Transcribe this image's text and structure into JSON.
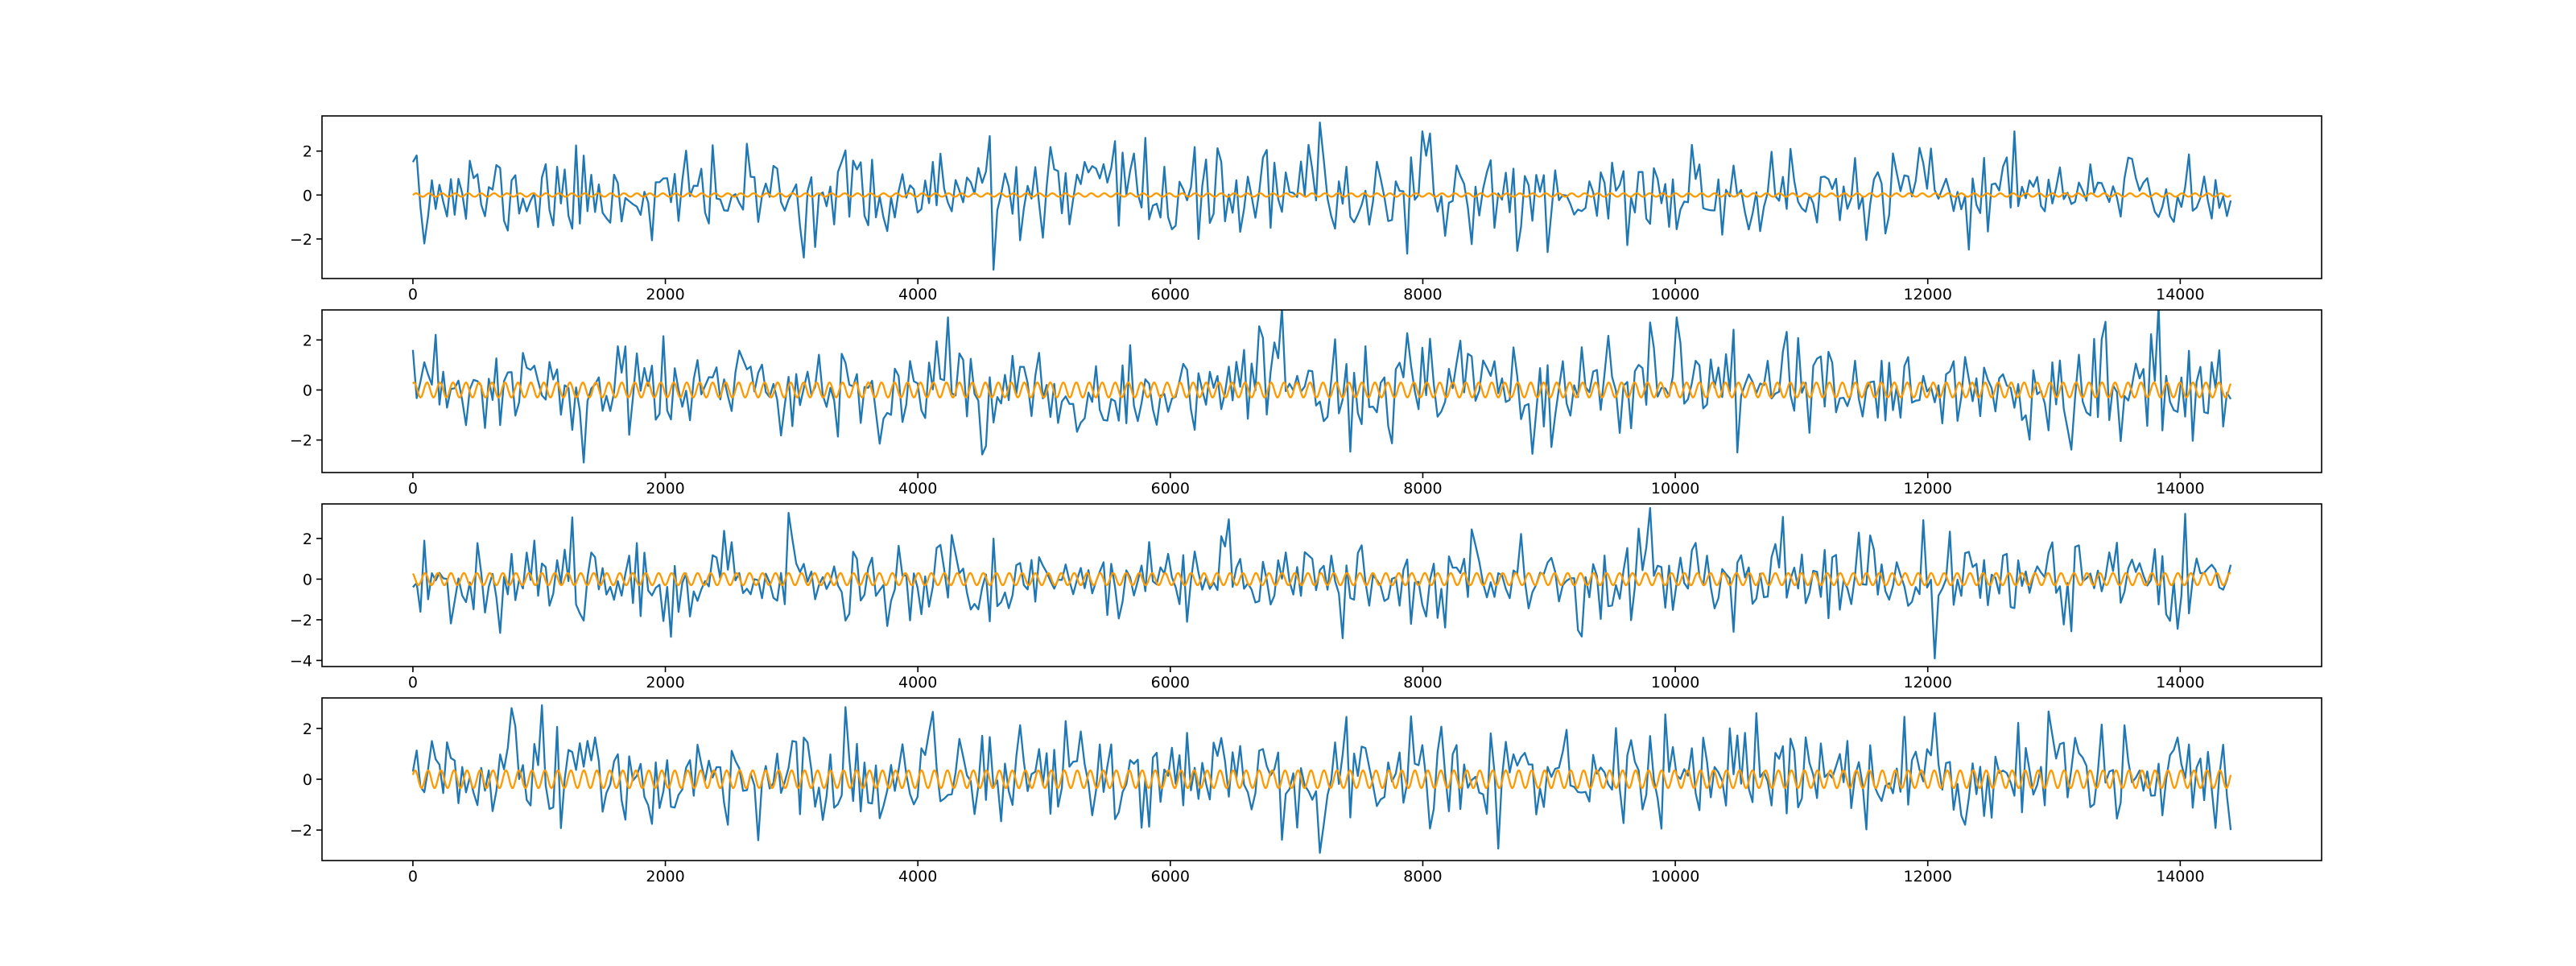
{
  "colors": {
    "noisy_series": "#1f77b4",
    "smooth_series": "#ff9900",
    "frame": "#000000"
  },
  "chart_data": [
    {
      "type": "line",
      "xlim": [
        -720,
        15120
      ],
      "ylim": [
        -3.8,
        3.6
      ],
      "xticks": [
        0,
        2000,
        4000,
        6000,
        8000,
        10000,
        12000,
        14000
      ],
      "yticks": [
        -2,
        0,
        2
      ],
      "x_range": [
        0,
        14400
      ],
      "noise": {
        "n_points": 480,
        "seed": 11,
        "scale": 1.0,
        "peaks": [
          [
            0,
            1.5
          ],
          [
            30,
            1.8
          ],
          [
            4600,
            -3.4
          ],
          [
            5800,
            2.6
          ],
          [
            7200,
            3.3
          ],
          [
            12700,
            2.9
          ],
          [
            9000,
            -2.6
          ]
        ]
      },
      "smooth": {
        "amplitude": 0.08,
        "cycles": 140,
        "phase": 0.0
      },
      "grid": false,
      "legend": "none"
    },
    {
      "type": "line",
      "xlim": [
        -720,
        15120
      ],
      "ylim": [
        -3.3,
        3.2
      ],
      "xticks": [
        0,
        2000,
        4000,
        6000,
        8000,
        10000,
        12000,
        14000
      ],
      "yticks": [
        -2,
        0,
        2
      ],
      "x_range": [
        0,
        14400
      ],
      "noise": {
        "n_points": 480,
        "seed": 23,
        "scale": 1.0,
        "peaks": [
          [
            0,
            1.6
          ],
          [
            1350,
            -2.9
          ],
          [
            4250,
            2.9
          ],
          [
            9800,
            2.7
          ],
          [
            10000,
            2.9
          ],
          [
            10500,
            -2.5
          ]
        ]
      },
      "smooth": {
        "amplitude": 0.3,
        "cycles": 140,
        "phase": 1.0
      },
      "grid": false,
      "legend": "none"
    },
    {
      "type": "line",
      "xlim": [
        -720,
        15120
      ],
      "ylim": [
        -4.3,
        3.7
      ],
      "xticks": [
        0,
        2000,
        4000,
        6000,
        8000,
        10000,
        12000,
        14000
      ],
      "yticks": [
        -4,
        -2,
        0,
        2
      ],
      "x_range": [
        0,
        14400
      ],
      "noise": {
        "n_points": 480,
        "seed": 37,
        "scale": 1.05,
        "peaks": [
          [
            0,
            -0.4
          ],
          [
            9800,
            3.5
          ],
          [
            12050,
            -3.9
          ],
          [
            11950,
            2.9
          ],
          [
            7900,
            -2.2
          ]
        ]
      },
      "smooth": {
        "amplitude": 0.3,
        "cycles": 140,
        "phase": 2.0
      },
      "grid": false,
      "legend": "none"
    },
    {
      "type": "line",
      "xlim": [
        -720,
        15120
      ],
      "ylim": [
        -3.2,
        3.2
      ],
      "xticks": [
        0,
        2000,
        4000,
        6000,
        8000,
        10000,
        12000,
        14000
      ],
      "yticks": [
        -2,
        0,
        2
      ],
      "x_range": [
        0,
        14400
      ],
      "noise": {
        "n_points": 480,
        "seed": 51,
        "scale": 1.0,
        "peaks": [
          [
            0,
            0.3
          ],
          [
            780,
            2.8
          ],
          [
            7200,
            -2.9
          ],
          [
            12050,
            2.6
          ],
          [
            14400,
            -2.0
          ]
        ]
      },
      "smooth": {
        "amplitude": 0.35,
        "cycles": 140,
        "phase": 0.5
      },
      "grid": false,
      "legend": "none"
    }
  ]
}
